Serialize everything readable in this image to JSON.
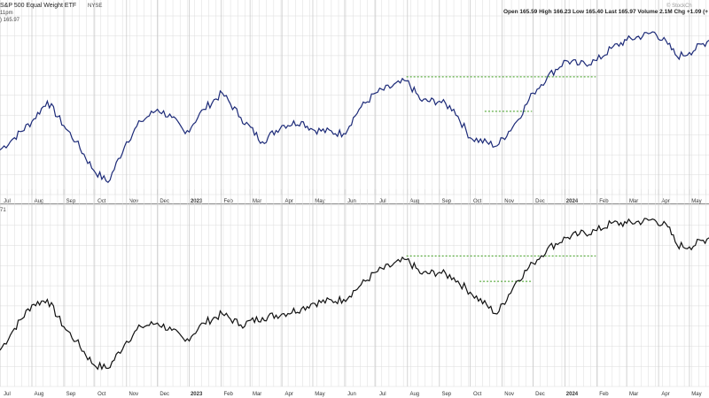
{
  "header": {
    "title": "S&P 500 Equal Weight ETF",
    "exchange": "NYSE",
    "session": "11pm",
    "price_readout": ") 165.97",
    "ohlc": "Open 165.59  High 166.23  Low 165.40  Last 165.97  Volume 2.1M  Chg +1.09 (+",
    "watermark": "© StockCh",
    "lower_label": "71"
  },
  "colors": {
    "upper_line": "#1c2a78",
    "lower_line": "#111111",
    "trend": "#3a9a1a",
    "grid": "#dcdcdc"
  },
  "chart_data": [
    {
      "type": "line",
      "panel": "upper",
      "xlabel": "",
      "ylabel": "",
      "x_ticks": [
        "Jul",
        "Aug",
        "Sep",
        "Oct",
        "Nov",
        "Dec",
        "2023",
        "Feb",
        "Mar",
        "Apr",
        "May",
        "Jun",
        "Jul",
        "Aug",
        "Sep",
        "Oct",
        "Nov",
        "Dec",
        "2024",
        "Feb",
        "Mar",
        "Apr",
        "May"
      ],
      "x_range": [
        "2022-07-01",
        "2024-05-20"
      ],
      "ylim": [
        128,
        172
      ],
      "grid": true,
      "series": [
        {
          "x": [
            "2022-07-01",
            "2022-07-15",
            "2022-08-01",
            "2022-08-16",
            "2022-09-01",
            "2022-09-13",
            "2022-09-30",
            "2022-10-14",
            "2022-11-01",
            "2022-11-15",
            "2022-12-01",
            "2022-12-15",
            "2022-12-28",
            "2023-01-15",
            "2023-02-02",
            "2023-02-20",
            "2023-03-13",
            "2023-04-01",
            "2023-04-20",
            "2023-05-01",
            "2023-05-31",
            "2023-06-15",
            "2023-07-01",
            "2023-07-31",
            "2023-08-15",
            "2023-09-01",
            "2023-09-15",
            "2023-10-01",
            "2023-10-27",
            "2023-11-15",
            "2023-12-01",
            "2023-12-15",
            "2024-01-02",
            "2024-01-15",
            "2024-02-01",
            "2024-02-15",
            "2024-03-01",
            "2024-03-28",
            "2024-04-10",
            "2024-04-19",
            "2024-05-01",
            "2024-05-20"
          ],
          "values": [
            139,
            142,
            146,
            151,
            145,
            141,
            134,
            131,
            141,
            146,
            149,
            147,
            143,
            149,
            153,
            147,
            141,
            145,
            146,
            144,
            143,
            149,
            153,
            156,
            151,
            151,
            149,
            142,
            140,
            146,
            153,
            157,
            161,
            160,
            161,
            164,
            166,
            168,
            165,
            162,
            163,
            166
          ]
        }
      ],
      "annotations": [
        {
          "type": "hline",
          "y": 157,
          "from": "2023-07-31",
          "to": "2024-01-31"
        },
        {
          "type": "hline",
          "y": 148.5,
          "from": "2023-10-15",
          "to": "2023-11-30"
        }
      ]
    },
    {
      "type": "line",
      "panel": "lower",
      "xlabel": "",
      "ylabel": "",
      "x_ticks": [
        "Jul",
        "Aug",
        "Sep",
        "Oct",
        "Nov",
        "Dec",
        "2023",
        "Feb",
        "Mar",
        "Apr",
        "May",
        "Jun",
        "Jul",
        "Aug",
        "Sep",
        "Oct",
        "Nov",
        "Dec",
        "2024",
        "Feb",
        "Mar",
        "Apr",
        "May"
      ],
      "x_range": [
        "2022-07-01",
        "2024-05-20"
      ],
      "ylim": [
        0,
        100
      ],
      "grid": true,
      "series": [
        {
          "x": [
            "2022-07-01",
            "2022-07-15",
            "2022-08-01",
            "2022-08-16",
            "2022-09-01",
            "2022-09-13",
            "2022-09-30",
            "2022-10-14",
            "2022-11-01",
            "2022-11-15",
            "2022-12-01",
            "2022-12-15",
            "2022-12-28",
            "2023-01-15",
            "2023-02-02",
            "2023-02-20",
            "2023-03-13",
            "2023-04-01",
            "2023-04-20",
            "2023-05-01",
            "2023-05-31",
            "2023-06-15",
            "2023-07-01",
            "2023-07-31",
            "2023-08-15",
            "2023-09-01",
            "2023-09-15",
            "2023-10-01",
            "2023-10-27",
            "2023-11-15",
            "2023-12-01",
            "2023-12-15",
            "2024-01-02",
            "2024-01-15",
            "2024-02-01",
            "2024-02-15",
            "2024-03-01",
            "2024-03-28",
            "2024-04-10",
            "2024-04-19",
            "2024-05-01",
            "2024-05-20"
          ],
          "values": [
            20,
            32,
            45,
            48,
            33,
            25,
            12,
            10,
            25,
            33,
            35,
            31,
            25,
            35,
            40,
            34,
            38,
            40,
            43,
            46,
            48,
            55,
            63,
            70,
            62,
            63,
            60,
            52,
            40,
            58,
            68,
            76,
            82,
            84,
            86,
            90,
            90,
            92,
            88,
            78,
            77,
            82
          ]
        }
      ],
      "annotations": [
        {
          "type": "hline",
          "y": 72,
          "from": "2023-07-31",
          "to": "2024-01-31"
        },
        {
          "type": "hline",
          "y": 58,
          "from": "2023-10-10",
          "to": "2023-11-30"
        }
      ]
    }
  ]
}
